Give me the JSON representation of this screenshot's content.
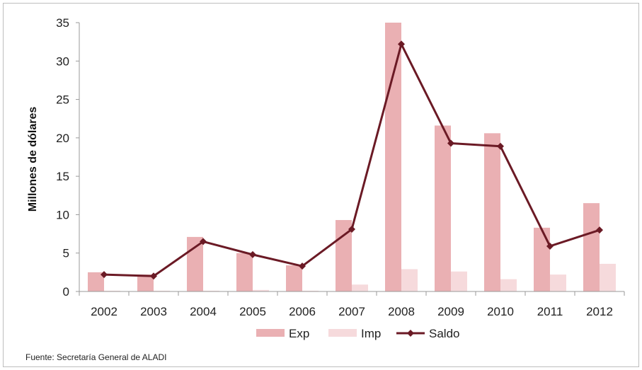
{
  "chart_data": {
    "type": "bar",
    "categories": [
      "2002",
      "2003",
      "2004",
      "2005",
      "2006",
      "2007",
      "2008",
      "2009",
      "2010",
      "2011",
      "2012"
    ],
    "series": [
      {
        "name": "Exp",
        "kind": "bar",
        "color": "#eab0b3",
        "values": [
          2.5,
          2.2,
          7.1,
          5.0,
          3.4,
          9.3,
          35.0,
          21.6,
          20.6,
          8.3,
          11.5
        ]
      },
      {
        "name": "Imp",
        "kind": "bar",
        "color": "#f6dadc",
        "values": [
          0.1,
          0.1,
          0.1,
          0.2,
          0.1,
          0.9,
          2.9,
          2.6,
          1.6,
          2.2,
          3.6
        ]
      },
      {
        "name": "Saldo",
        "kind": "line",
        "color": "#6b1a25",
        "values": [
          2.2,
          2.0,
          6.5,
          4.8,
          3.3,
          8.1,
          32.2,
          19.3,
          18.9,
          5.9,
          8.0
        ]
      }
    ],
    "xlabel": "",
    "ylabel": "Millones de dólares",
    "ylim": [
      0,
      35
    ],
    "yticks": [
      0,
      5,
      10,
      15,
      20,
      25,
      30,
      35
    ],
    "grid": false,
    "legend_position": "bottom"
  },
  "footer": {
    "source": "Fuente: Secretaría General de ALADI"
  }
}
